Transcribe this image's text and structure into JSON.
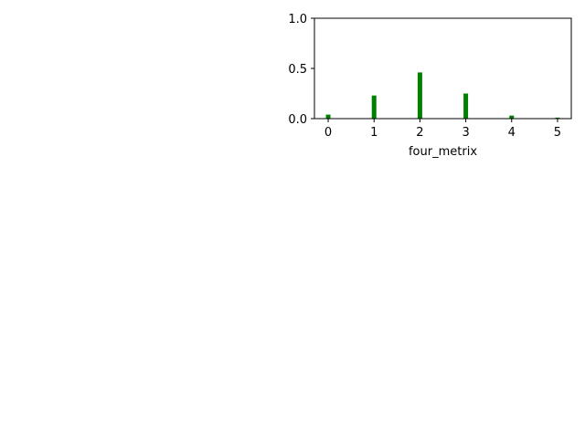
{
  "chart_data": {
    "type": "bar",
    "title": "",
    "xlabel": "four_metrix",
    "ylabel": "",
    "categories": [
      0,
      1,
      2,
      3,
      4,
      5
    ],
    "values": [
      0.04,
      0.23,
      0.46,
      0.25,
      0.03,
      0.01
    ],
    "x_ticks": [
      "0",
      "1",
      "2",
      "3",
      "4",
      "5"
    ],
    "y_ticks": [
      "0.0",
      "0.5",
      "1.0"
    ],
    "ylim": [
      0,
      1.0
    ],
    "xlim": [
      -0.3,
      5.3
    ],
    "grid": false,
    "bar_color": "#008000"
  }
}
